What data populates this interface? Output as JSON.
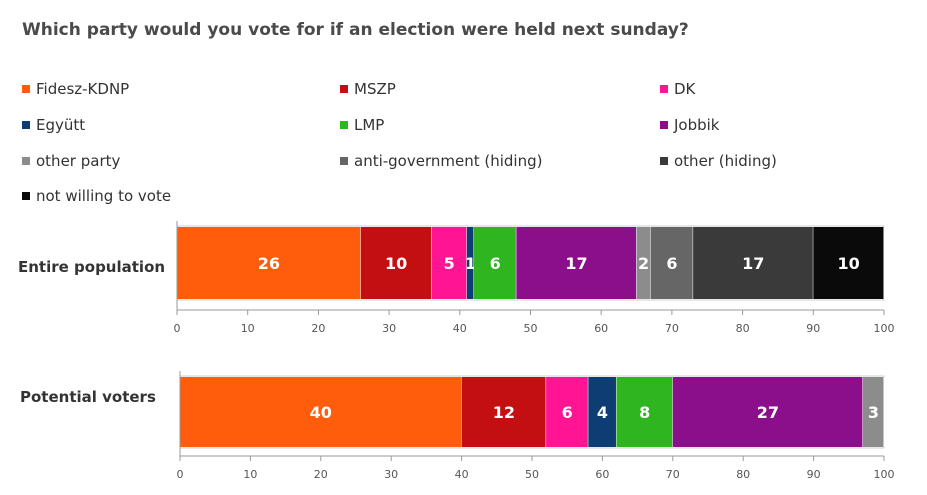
{
  "title": "Which party would you vote for if an election were held next sunday?",
  "legend": [
    {
      "label": "Fidesz-KDNP",
      "color": "#ff5c0b"
    },
    {
      "label": "MSZP",
      "color": "#c40f12"
    },
    {
      "label": "DK",
      "color": "#ff1493"
    },
    {
      "label": "Együtt",
      "color": "#0e3d73"
    },
    {
      "label": "LMP",
      "color": "#2fb51f"
    },
    {
      "label": "Jobbik",
      "color": "#8b0e8b"
    },
    {
      "label": "other party",
      "color": "#8c8c8c"
    },
    {
      "label": "anti-government (hiding)",
      "color": "#666666"
    },
    {
      "label": "other (hiding)",
      "color": "#3a3a3a"
    },
    {
      "label": "not willing to vote",
      "color": "#0a0a0a"
    }
  ],
  "chart_data": [
    {
      "type": "bar",
      "orientation": "horizontal-stacked",
      "category": "Entire population",
      "xlim": [
        0,
        100
      ],
      "ticks": [
        0,
        10,
        20,
        30,
        40,
        50,
        60,
        70,
        80,
        90,
        100
      ],
      "segments": [
        {
          "series": "Fidesz-KDNP",
          "value": 26,
          "color": "#ff5c0b"
        },
        {
          "series": "MSZP",
          "value": 10,
          "color": "#c40f12"
        },
        {
          "series": "DK",
          "value": 5,
          "color": "#ff1493"
        },
        {
          "series": "Együtt",
          "value": 1,
          "color": "#0e3d73"
        },
        {
          "series": "LMP",
          "value": 6,
          "color": "#2fb51f"
        },
        {
          "series": "Jobbik",
          "value": 17,
          "color": "#8b0e8b"
        },
        {
          "series": "other party",
          "value": 2,
          "color": "#8c8c8c"
        },
        {
          "series": "anti-government (hiding)",
          "value": 6,
          "color": "#666666"
        },
        {
          "series": "other (hiding)",
          "value": 17,
          "color": "#3a3a3a"
        },
        {
          "series": "not willing to vote",
          "value": 10,
          "color": "#0a0a0a"
        }
      ]
    },
    {
      "type": "bar",
      "orientation": "horizontal-stacked",
      "category": "Potential voters",
      "xlim": [
        0,
        100
      ],
      "ticks": [
        0,
        10,
        20,
        30,
        40,
        50,
        60,
        70,
        80,
        90,
        100
      ],
      "segments": [
        {
          "series": "Fidesz-KDNP",
          "value": 40,
          "color": "#ff5c0b"
        },
        {
          "series": "MSZP",
          "value": 12,
          "color": "#c40f12"
        },
        {
          "series": "DK",
          "value": 6,
          "color": "#ff1493"
        },
        {
          "series": "Együtt",
          "value": 4,
          "color": "#0e3d73"
        },
        {
          "series": "LMP",
          "value": 8,
          "color": "#2fb51f"
        },
        {
          "series": "Jobbik",
          "value": 27,
          "color": "#8b0e8b"
        },
        {
          "series": "other party",
          "value": 3,
          "color": "#8c8c8c"
        }
      ]
    }
  ]
}
